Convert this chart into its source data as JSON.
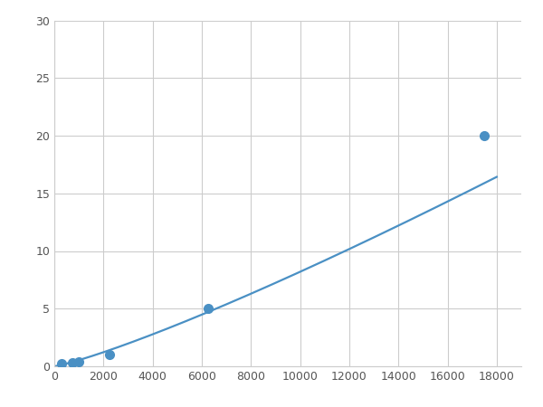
{
  "x": [
    300,
    750,
    1000,
    2250,
    6250,
    17500
  ],
  "y": [
    0.2,
    0.35,
    0.4,
    1.0,
    5.0,
    20.0
  ],
  "line_color": "#4A90C4",
  "marker_color": "#4A90C4",
  "marker_size": 7,
  "line_width": 1.6,
  "xlim": [
    0,
    19000
  ],
  "ylim": [
    0,
    30
  ],
  "xticks": [
    0,
    2000,
    4000,
    6000,
    8000,
    10000,
    12000,
    14000,
    16000,
    18000
  ],
  "yticks": [
    0,
    5,
    10,
    15,
    20,
    25,
    30
  ],
  "grid_color": "#cccccc",
  "background_color": "#ffffff",
  "figsize": [
    6.0,
    4.5
  ],
  "dpi": 100
}
